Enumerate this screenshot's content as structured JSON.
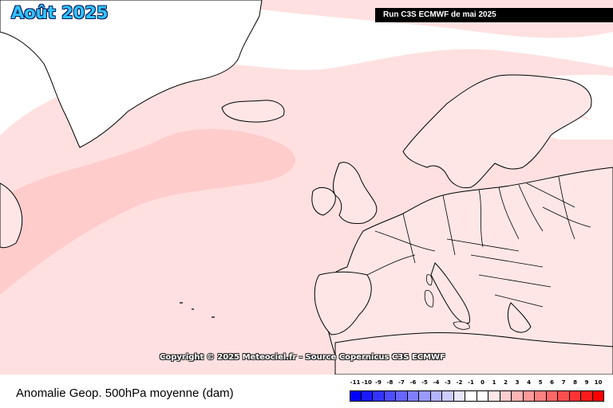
{
  "map": {
    "title": "Août 2025",
    "run_label": "Run C3S ECMWF de mai 2025",
    "copyright": "Copyright © 2025 Meteociel.fr - Source Copernicus C3S ECMWF",
    "subtitle": "Anomalie Geop. 500hPa moyenne (dam)",
    "colors": {
      "land_fill": "#ffe6e6",
      "anomaly_light": "#ffe0e0",
      "anomaly_medium": "#ffcccc",
      "coast_line": "#000000"
    }
  },
  "legend": {
    "labels": [
      "-11",
      "-10",
      "-9",
      "-8",
      "-7",
      "-6",
      "-5",
      "-4",
      "-3",
      "-2",
      "-1",
      "0",
      "1",
      "2",
      "3",
      "4",
      "5",
      "6",
      "7",
      "8",
      "9",
      "10"
    ],
    "colors": [
      "#0000ff",
      "#1a1aff",
      "#3333ff",
      "#4d4dff",
      "#6666ff",
      "#8080ff",
      "#9999ff",
      "#b3b3ff",
      "#ccccff",
      "#e6e6ff",
      "#ffffff",
      "#ffffff",
      "#ffe6e6",
      "#ffcccc",
      "#ffb3b3",
      "#ff9999",
      "#ff8080",
      "#ff6666",
      "#ff4d4d",
      "#ff3333",
      "#ff1a1a",
      "#ff0000"
    ]
  }
}
